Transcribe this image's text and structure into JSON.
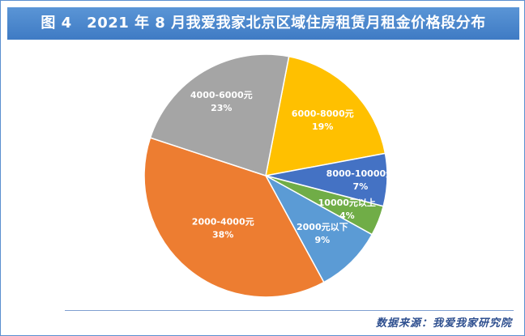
{
  "title": "图 4　2021 年 8 月我爱我家北京区域住房租赁月租金价格段分布",
  "source": "数据来源：我爱我家研究院",
  "chart_data": {
    "type": "pie",
    "title": "图 4　2021 年 8 月我爱我家北京区域住房租赁月租金价格段分布",
    "slices": [
      {
        "label": "6000-8000元",
        "value": 19,
        "display": "19%",
        "color": "#FFC000"
      },
      {
        "label": "8000-10000元",
        "value": 7,
        "display": "7%",
        "color": "#4472C4"
      },
      {
        "label": "10000元以上",
        "value": 4,
        "display": "4%",
        "color": "#70AD47"
      },
      {
        "label": "2000元以下",
        "value": 9,
        "display": "9%",
        "color": "#5B9BD5"
      },
      {
        "label": "2000-4000元",
        "value": 38,
        "display": "38%",
        "color": "#ED7D31"
      },
      {
        "label": "4000-6000元",
        "value": 23,
        "display": "23%",
        "color": "#A5A5A5"
      }
    ],
    "legend": "none"
  }
}
